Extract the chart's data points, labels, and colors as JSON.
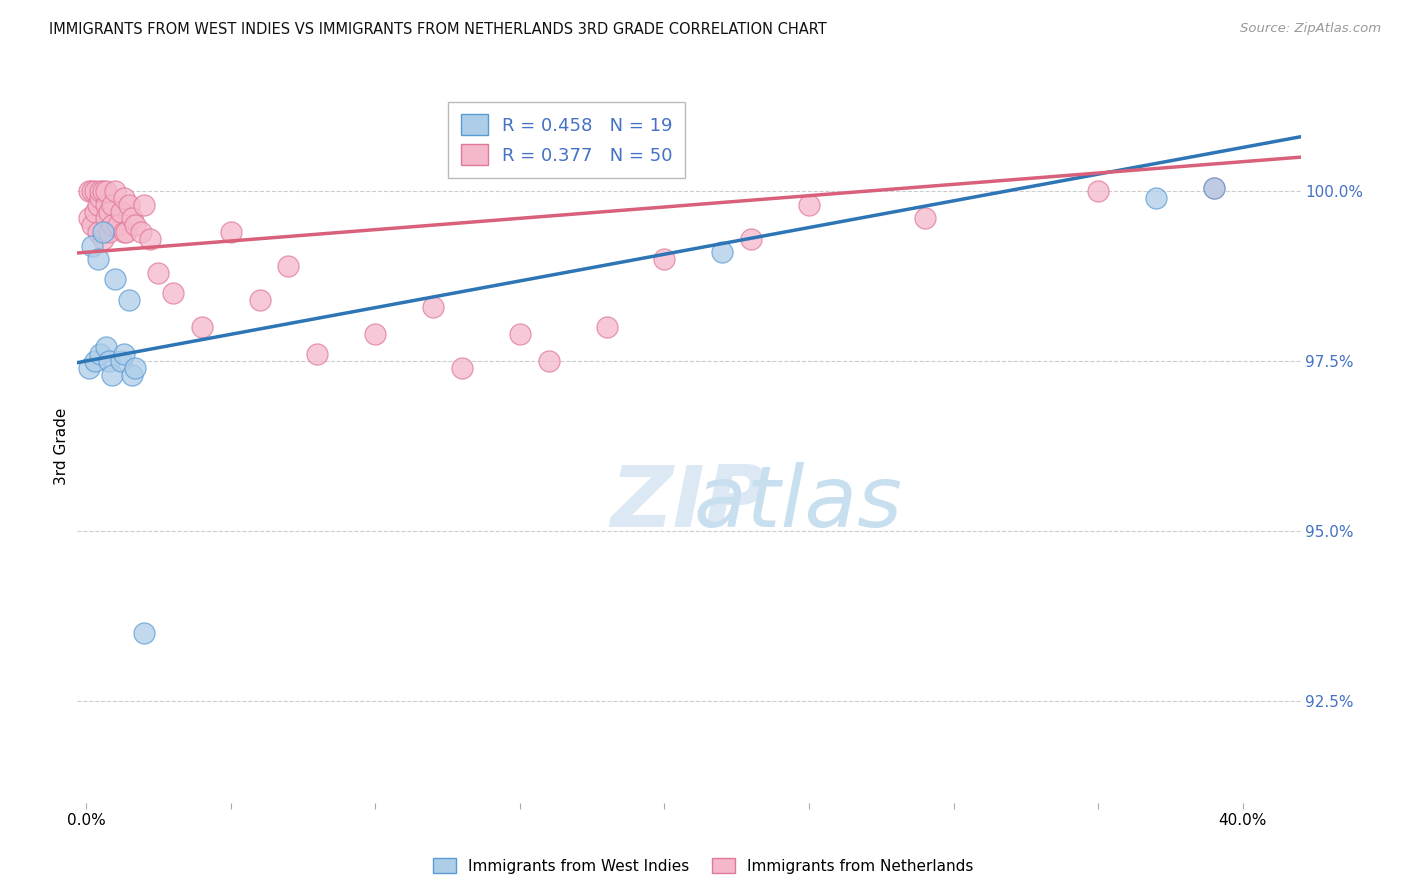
{
  "title": "IMMIGRANTS FROM WEST INDIES VS IMMIGRANTS FROM NETHERLANDS 3RD GRADE CORRELATION CHART",
  "source": "Source: ZipAtlas.com",
  "ylabel": "3rd Grade",
  "blue_label": "Immigrants from West Indies",
  "pink_label": "Immigrants from Netherlands",
  "blue_R": 0.458,
  "blue_N": 19,
  "pink_R": 0.377,
  "pink_N": 50,
  "blue_color": "#aecde8",
  "pink_color": "#f5b8cb",
  "blue_edge_color": "#5b9bd5",
  "pink_edge_color": "#e07898",
  "blue_line_color": "#2e75b6",
  "pink_line_color": "#d9607a",
  "ymin": 91.0,
  "ymax": 101.5,
  "xmin": -0.003,
  "xmax": 0.42,
  "yticks": [
    92.5,
    95.0,
    97.5,
    100.0
  ],
  "blue_line_x0": 0.0,
  "blue_line_y0": 97.5,
  "blue_line_x1": 0.42,
  "blue_line_y1": 100.8,
  "pink_line_x0": 0.0,
  "pink_line_y0": 99.1,
  "pink_line_x1": 0.42,
  "pink_line_y1": 100.5,
  "blue_x": [
    0.001,
    0.002,
    0.003,
    0.004,
    0.005,
    0.006,
    0.007,
    0.008,
    0.009,
    0.01,
    0.012,
    0.013,
    0.015,
    0.016,
    0.017,
    0.02,
    0.22,
    0.37,
    0.39
  ],
  "blue_y": [
    97.4,
    99.2,
    97.5,
    99.0,
    97.6,
    99.4,
    97.7,
    97.5,
    97.3,
    98.7,
    97.5,
    97.6,
    98.4,
    97.3,
    97.4,
    93.5,
    99.1,
    99.9,
    100.05
  ],
  "pink_x": [
    0.001,
    0.001,
    0.002,
    0.002,
    0.003,
    0.003,
    0.004,
    0.004,
    0.005,
    0.005,
    0.006,
    0.006,
    0.007,
    0.007,
    0.007,
    0.008,
    0.008,
    0.009,
    0.009,
    0.01,
    0.011,
    0.012,
    0.013,
    0.013,
    0.014,
    0.015,
    0.016,
    0.017,
    0.019,
    0.02,
    0.022,
    0.025,
    0.03,
    0.04,
    0.05,
    0.06,
    0.07,
    0.08,
    0.1,
    0.12,
    0.13,
    0.15,
    0.16,
    0.18,
    0.2,
    0.23,
    0.25,
    0.29,
    0.35,
    0.39
  ],
  "pink_y": [
    99.6,
    100.0,
    99.5,
    100.0,
    99.7,
    100.0,
    99.8,
    99.4,
    99.9,
    100.0,
    100.0,
    99.3,
    99.8,
    99.6,
    100.0,
    99.7,
    99.4,
    99.8,
    99.5,
    100.0,
    99.5,
    99.7,
    99.9,
    99.4,
    99.4,
    99.8,
    99.6,
    99.5,
    99.4,
    99.8,
    99.3,
    98.8,
    98.5,
    98.0,
    99.4,
    98.4,
    98.9,
    97.6,
    97.9,
    98.3,
    97.4,
    97.9,
    97.5,
    98.0,
    99.0,
    99.3,
    99.8,
    99.6,
    100.0,
    100.05
  ]
}
